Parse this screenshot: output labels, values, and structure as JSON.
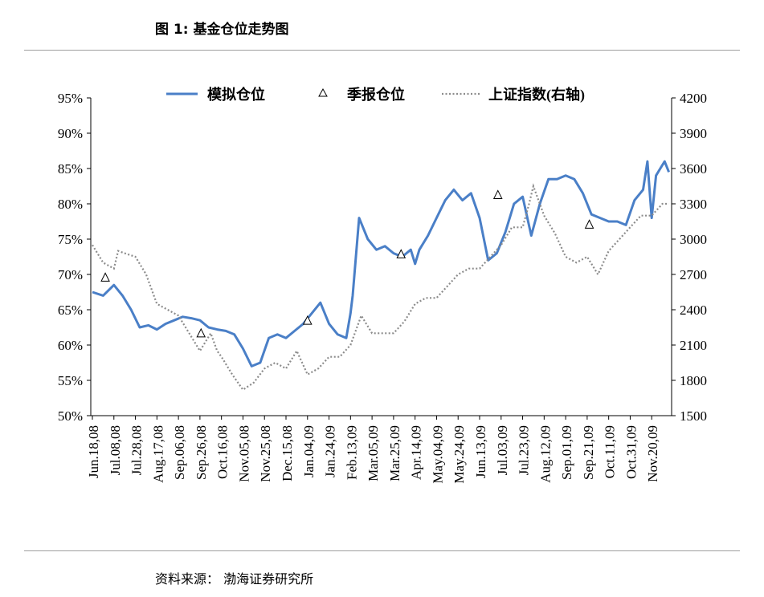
{
  "title": "图 1:  基金仓位走势图",
  "source": "资料来源：  渤海证券研究所",
  "colors": {
    "model": "#4a7fc7",
    "index": "#8c8c8c",
    "axis": "#000000"
  },
  "chart_data": {
    "type": "line",
    "legend_position": "top",
    "grid": false,
    "y_left": {
      "ticks": [
        "50%",
        "55%",
        "60%",
        "65%",
        "70%",
        "75%",
        "80%",
        "85%",
        "90%",
        "95%"
      ],
      "ylim": [
        50,
        95
      ]
    },
    "y_right": {
      "ticks": [
        "1500",
        "1800",
        "2100",
        "2400",
        "2700",
        "3000",
        "3300",
        "3600",
        "3900",
        "4200"
      ],
      "ylim": [
        1500,
        4200
      ]
    },
    "x_ticks": [
      "Jun.18,08",
      "Jul.08,08",
      "Jul.28,08",
      "Aug.17,08",
      "Sep.06,08",
      "Sep.26,08",
      "Oct.16,08",
      "Nov.05,08",
      "Nov.25,08",
      "Dec.15,08",
      "Jan.04,09",
      "Jan.24,09",
      "Feb.13,09",
      "Mar.05,09",
      "Mar.25,09",
      "Apr.14,09",
      "May.04,09",
      "May.24,09",
      "Jun.13,09",
      "Jul.03,09",
      "Jul.23,09",
      "Aug.12,09",
      "Sep.01,09",
      "Sep.21,09",
      "Oct.11,09",
      "Oct.31,09",
      "Nov.20,09"
    ],
    "series": [
      {
        "name": "模拟仓位",
        "axis": "left",
        "style": "solid",
        "x": [
          0,
          0.5,
          1,
          1.4,
          1.8,
          2.2,
          2.6,
          3.0,
          3.4,
          3.8,
          4.2,
          4.6,
          5.0,
          5.4,
          5.8,
          6.2,
          6.6,
          7.0,
          7.4,
          7.8,
          8.2,
          8.6,
          9.0,
          9.4,
          9.8,
          10.2,
          10.6,
          11.0,
          11.4,
          11.8,
          12.0,
          12.1,
          12.4,
          12.8,
          13.2,
          13.6,
          14.0,
          14.4,
          14.8,
          15.0,
          15.2,
          15.6,
          16.0,
          16.4,
          16.8,
          17.2,
          17.6,
          18.0,
          18.4,
          18.8,
          19.2,
          19.6,
          20.0,
          20.4,
          20.8,
          21.2,
          21.6,
          22.0,
          22.4,
          22.8,
          23.2,
          23.6,
          24.0,
          24.4,
          24.8,
          25.2,
          25.6,
          25.8,
          26.0,
          26.2,
          26.4,
          26.6,
          26.8
        ],
        "values": [
          67.5,
          67,
          68.5,
          67,
          65,
          62.5,
          62.8,
          62.2,
          63,
          63.5,
          64,
          63.8,
          63.5,
          62.5,
          62.2,
          62.0,
          61.5,
          59.5,
          57,
          57.5,
          61,
          61.5,
          61,
          62,
          63,
          64.5,
          66,
          63,
          61.5,
          61,
          64.5,
          67,
          78,
          75,
          73.5,
          74,
          73,
          72.5,
          73.5,
          71.5,
          73.5,
          75.5,
          78,
          80.5,
          82,
          80.5,
          81.5,
          78,
          72,
          73,
          76,
          80,
          81,
          75.5,
          80,
          83.5,
          83.5,
          84,
          83.5,
          81.5,
          78.5,
          78,
          77.5,
          77.5,
          77,
          80.5,
          82,
          86,
          78,
          84,
          85,
          86,
          84.5
        ]
      },
      {
        "name": "季报仓位",
        "axis": "left",
        "style": "triangle",
        "x": [
          0.6,
          5.05,
          10.0,
          14.35,
          18.85,
          23.1
        ],
        "values": [
          69.5,
          61.6,
          63.4,
          72.8,
          81.2,
          77.0
        ]
      },
      {
        "name": "上证指数(右轴)",
        "axis": "right",
        "style": "dotted",
        "x": [
          0,
          0.5,
          1,
          1.2,
          1.5,
          2.0,
          2.5,
          3.0,
          3.5,
          4.0,
          4.5,
          5.0,
          5.5,
          5.8,
          6.0,
          6.5,
          7.0,
          7.5,
          8.0,
          8.5,
          9.0,
          9.5,
          10.0,
          10.5,
          11.0,
          11.5,
          12.0,
          12.5,
          13.0,
          13.5,
          14.0,
          14.5,
          15.0,
          15.5,
          16.0,
          16.5,
          17.0,
          17.5,
          18.0,
          18.5,
          19.0,
          19.5,
          20.0,
          20.3,
          20.5,
          21.0,
          21.5,
          22.0,
          22.5,
          23.0,
          23.5,
          24.0,
          24.5,
          25.0,
          25.5,
          26.0,
          26.5,
          26.8
        ],
        "values": [
          2950,
          2800,
          2750,
          2900,
          2880,
          2850,
          2700,
          2450,
          2400,
          2350,
          2200,
          2050,
          2200,
          2050,
          2000,
          1850,
          1720,
          1780,
          1900,
          1950,
          1900,
          2050,
          1850,
          1900,
          2000,
          2000,
          2100,
          2350,
          2200,
          2200,
          2200,
          2300,
          2450,
          2500,
          2500,
          2600,
          2700,
          2750,
          2750,
          2850,
          2950,
          3100,
          3100,
          3300,
          3450,
          3200,
          3050,
          2850,
          2800,
          2850,
          2700,
          2900,
          3000,
          3100,
          3200,
          3200,
          3300,
          3300
        ]
      }
    ]
  }
}
